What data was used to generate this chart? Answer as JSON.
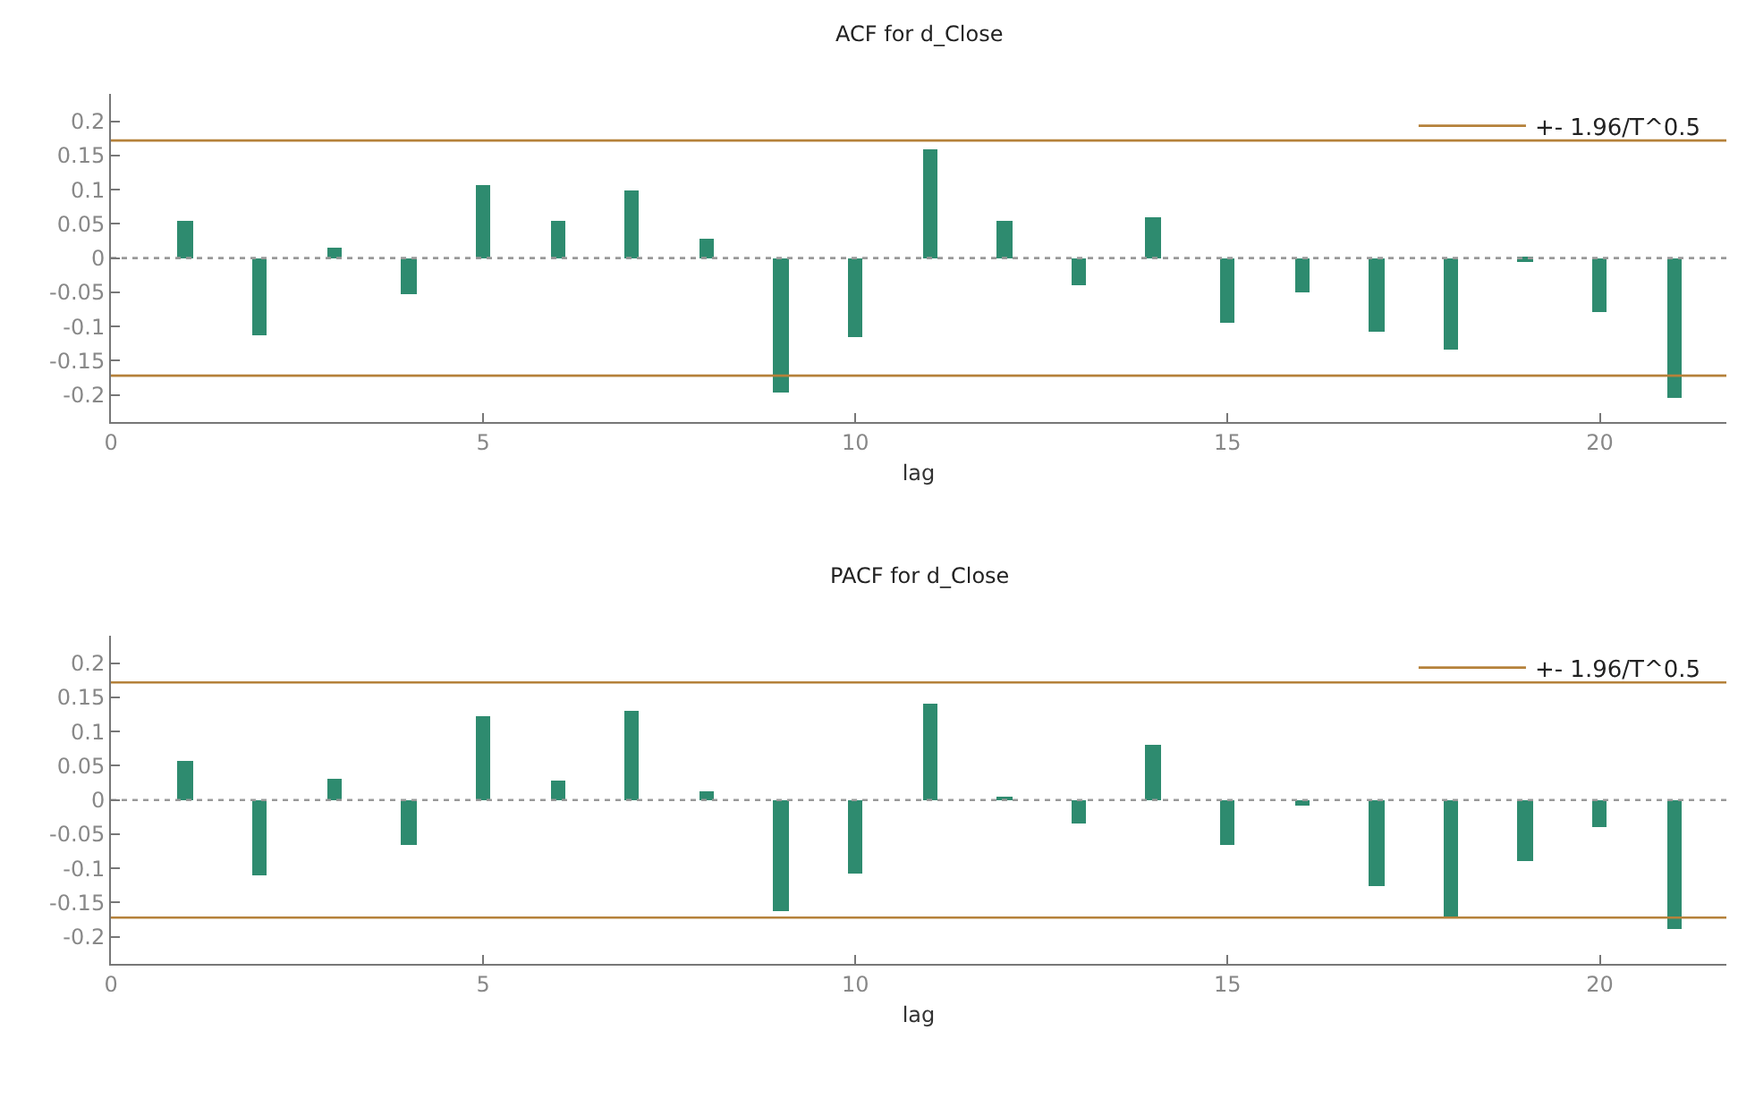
{
  "chart_data": [
    {
      "type": "bar",
      "title": "ACF for d_Close",
      "xlabel": "lag",
      "x": [
        1,
        2,
        3,
        4,
        5,
        6,
        7,
        8,
        9,
        10,
        11,
        12,
        13,
        14,
        15,
        16,
        17,
        18,
        19,
        20,
        21
      ],
      "values": [
        0.054,
        -0.114,
        0.015,
        -0.053,
        0.107,
        0.054,
        0.1,
        0.029,
        -0.198,
        -0.117,
        0.158,
        0.054,
        -0.039,
        0.059,
        -0.094,
        -0.05,
        -0.107,
        -0.133,
        -0.005,
        -0.078,
        -0.204
      ],
      "color": "#2e8b6f",
      "xlim": [
        0,
        21.7
      ],
      "xticks": [
        0,
        5,
        10,
        15,
        20
      ],
      "ylim": [
        -0.24,
        0.24
      ],
      "yticks": [
        -0.2,
        -0.15,
        -0.1,
        -0.05,
        0,
        0.05,
        0.1,
        0.15,
        0.2
      ],
      "ref_lines": [
        {
          "axis": "y",
          "value": 0.172,
          "label": "+- 1.96/T^0.5",
          "color": "#b5813a"
        },
        {
          "axis": "y",
          "value": -0.172,
          "color": "#b5813a"
        },
        {
          "axis": "y",
          "value": 0,
          "color": "#999999",
          "line_style": "dotted"
        }
      ],
      "legend": "top right"
    },
    {
      "type": "bar",
      "title": "PACF for d_Close",
      "xlabel": "lag",
      "x": [
        1,
        2,
        3,
        4,
        5,
        6,
        7,
        8,
        9,
        10,
        11,
        12,
        13,
        14,
        15,
        16,
        17,
        18,
        19,
        20,
        21
      ],
      "values": [
        0.057,
        -0.11,
        0.031,
        -0.066,
        0.122,
        0.028,
        0.131,
        0.012,
        -0.163,
        -0.108,
        0.14,
        0.005,
        -0.035,
        0.08,
        -0.066,
        -0.009,
        -0.125,
        -0.173,
        -0.09,
        -0.041,
        -0.19
      ],
      "color": "#2e8b6f",
      "xlim": [
        0,
        21.7
      ],
      "xticks": [
        0,
        5,
        10,
        15,
        20
      ],
      "ylim": [
        -0.24,
        0.24
      ],
      "yticks": [
        -0.2,
        -0.15,
        -0.1,
        -0.05,
        0,
        0.05,
        0.1,
        0.15,
        0.2
      ],
      "ref_lines": [
        {
          "axis": "y",
          "value": 0.172,
          "label": "+- 1.96/T^0.5",
          "color": "#b5813a"
        },
        {
          "axis": "y",
          "value": -0.172,
          "color": "#b5813a"
        },
        {
          "axis": "y",
          "value": 0,
          "color": "#999999",
          "line_style": "dotted"
        }
      ],
      "legend": "top right"
    }
  ]
}
